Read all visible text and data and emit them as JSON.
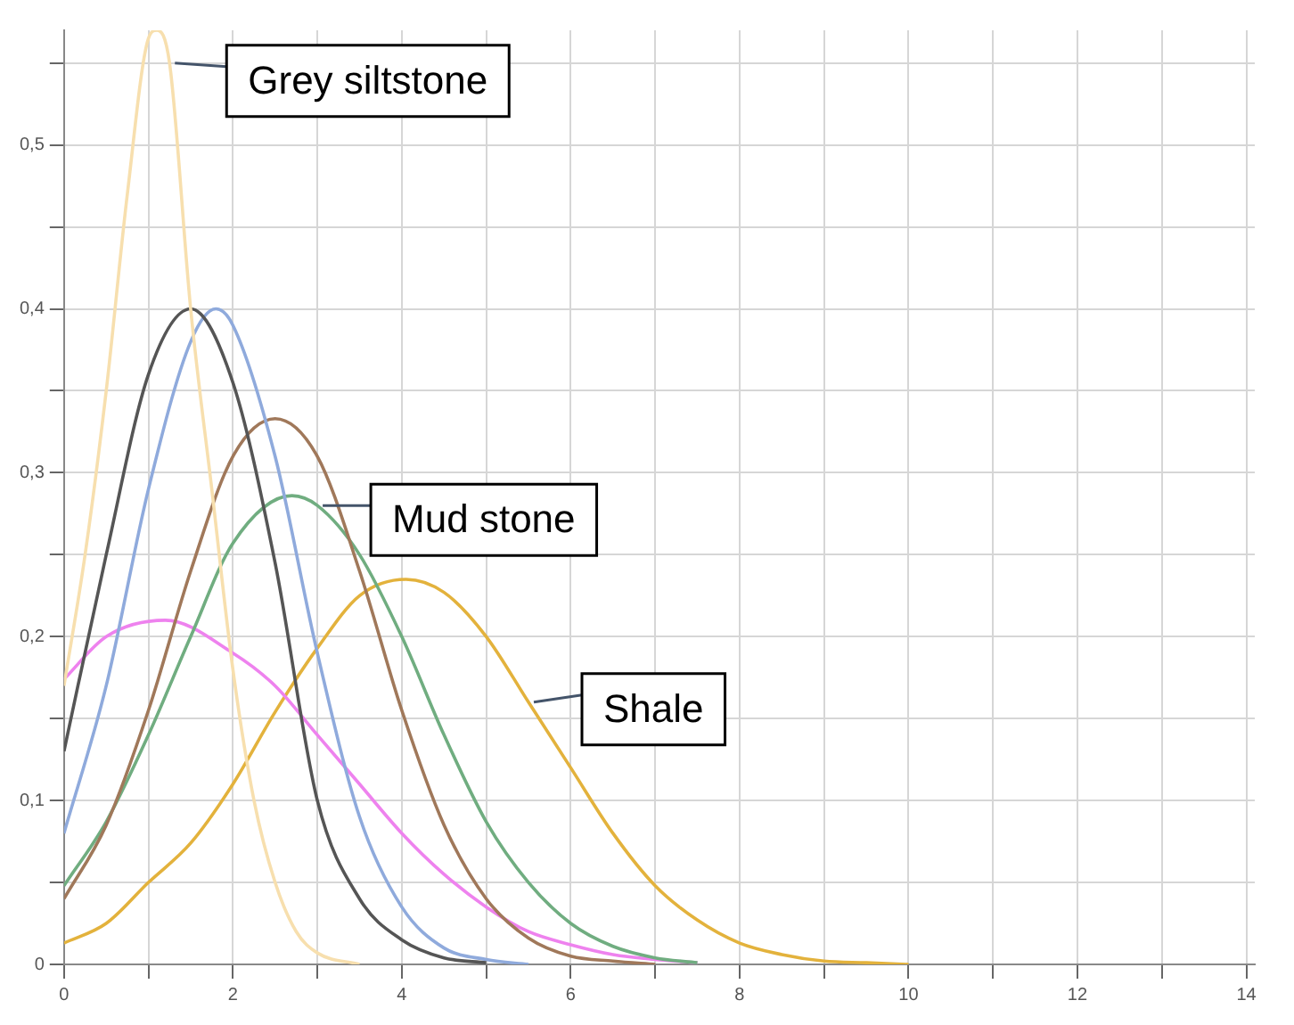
{
  "chart_data": {
    "type": "line",
    "xlim": [
      0,
      14.1
    ],
    "ylim": [
      0,
      0.57
    ],
    "xticks": [
      0,
      {
        "value": 1,
        "label": null
      },
      2,
      {
        "value": 3,
        "label": null
      },
      4,
      {
        "value": 5,
        "label": null
      },
      6,
      {
        "value": 7,
        "label": null
      },
      8,
      {
        "value": 9,
        "label": null
      },
      10,
      {
        "value": 11,
        "label": null
      },
      12,
      {
        "value": 13,
        "label": null
      },
      14
    ],
    "yticks": [
      0,
      {
        "value": 0.05,
        "label": null
      },
      {
        "value": 0.1,
        "label": "0,1"
      },
      {
        "value": 0.15,
        "label": null
      },
      {
        "value": 0.2,
        "label": "0,2"
      },
      {
        "value": 0.25,
        "label": null
      },
      {
        "value": 0.3,
        "label": "0,3"
      },
      {
        "value": 0.35,
        "label": null
      },
      {
        "value": 0.4,
        "label": "0,4"
      },
      {
        "value": 0.45,
        "label": null
      },
      {
        "value": 0.5,
        "label": "0,5"
      },
      {
        "value": 0.55,
        "label": null
      }
    ],
    "grid": true,
    "legend": false,
    "series": [
      {
        "name": "Grey siltstone",
        "color": "#f7dfae",
        "x": [
          0,
          0.25,
          0.5,
          0.75,
          1.0,
          1.1,
          1.25,
          1.5,
          1.75,
          2.0,
          2.25,
          2.5,
          2.75,
          3.0,
          3.5
        ],
        "values": [
          0.17,
          0.25,
          0.35,
          0.47,
          0.565,
          0.57,
          0.55,
          0.4,
          0.29,
          0.18,
          0.1,
          0.05,
          0.02,
          0.007,
          0
        ]
      },
      {
        "color": "#555555",
        "x": [
          0,
          0.5,
          1.0,
          1.5,
          2.0,
          2.5,
          3.0,
          3.5,
          4.0,
          4.5,
          5.0
        ],
        "values": [
          0.13,
          0.25,
          0.36,
          0.4,
          0.355,
          0.245,
          0.1,
          0.04,
          0.015,
          0.004,
          0.001
        ]
      },
      {
        "color": "#8faadc",
        "x": [
          0,
          0.5,
          1.0,
          1.5,
          1.8,
          2.0,
          2.5,
          3.0,
          3.5,
          4.0,
          4.5,
          5.0,
          5.5
        ],
        "values": [
          0.08,
          0.17,
          0.29,
          0.38,
          0.4,
          0.39,
          0.31,
          0.19,
          0.09,
          0.035,
          0.01,
          0.003,
          0
        ]
      },
      {
        "color": "#a0785a",
        "x": [
          0,
          0.5,
          1,
          1.5,
          2,
          2.5,
          3,
          3.5,
          4,
          4.5,
          5,
          5.5,
          6,
          6.5,
          7
        ],
        "values": [
          0.04,
          0.085,
          0.155,
          0.24,
          0.31,
          0.333,
          0.31,
          0.24,
          0.155,
          0.085,
          0.04,
          0.016,
          0.005,
          0.002,
          0
        ]
      },
      {
        "name": "Mud stone",
        "color": "#70ad80",
        "x": [
          0,
          0.5,
          1,
          1.5,
          2,
          2.7,
          3,
          3.5,
          4,
          4.5,
          5,
          5.5,
          6,
          6.5,
          7,
          7.5
        ],
        "values": [
          0.048,
          0.087,
          0.14,
          0.2,
          0.257,
          0.286,
          0.28,
          0.25,
          0.2,
          0.14,
          0.087,
          0.05,
          0.025,
          0.011,
          0.004,
          0.001
        ]
      },
      {
        "color": "#ee82ee",
        "x": [
          0,
          0.5,
          1.2,
          2,
          2.5,
          3,
          3.5,
          4,
          4.5,
          5,
          5.5,
          6,
          6.5,
          7,
          7.5
        ],
        "values": [
          0.174,
          0.2,
          0.21,
          0.19,
          0.17,
          0.14,
          0.11,
          0.08,
          0.055,
          0.035,
          0.02,
          0.012,
          0.006,
          0.003,
          0.001
        ]
      },
      {
        "name": "Shale",
        "color": "#e3b23c",
        "x": [
          0,
          0.5,
          1,
          1.5,
          2,
          2.5,
          3,
          3.5,
          4.05,
          4.5,
          5,
          5.5,
          6,
          6.5,
          7,
          7.5,
          8,
          8.5,
          9,
          9.5,
          10
        ],
        "values": [
          0.013,
          0.025,
          0.05,
          0.074,
          0.11,
          0.154,
          0.193,
          0.225,
          0.235,
          0.227,
          0.2,
          0.16,
          0.12,
          0.08,
          0.048,
          0.027,
          0.013,
          0.006,
          0.002,
          0.001,
          0
        ]
      }
    ]
  }
}
